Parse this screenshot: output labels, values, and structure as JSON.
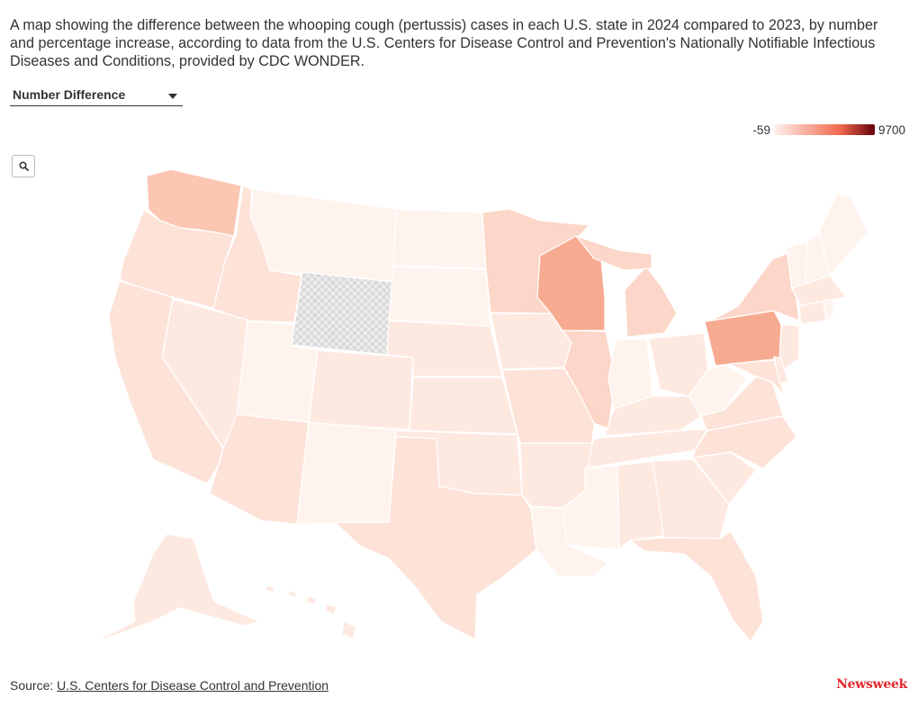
{
  "description": "A map showing the difference between the whooping cough (pertussis) cases in each U.S. state in 2024 compared to 2023, by number and percentage increase, according to data from the U.S. Centers for Disease Control and Prevention's Nationally Notifiable Infectious Diseases and Conditions, provided by CDC WONDER.",
  "dropdown": {
    "selected": "Number Difference"
  },
  "legend": {
    "min_label": "-59",
    "max_label": "9700",
    "color_low": "#fff1ec",
    "color_mid": "#f26a4f",
    "color_high": "#67000d"
  },
  "colors": {
    "no_data": "#e6e6e6",
    "shade_1": "#fff3ee",
    "shade_2": "#fee9e1",
    "shade_3": "#fde2d7",
    "shade_4": "#fcd6c8",
    "shade_5": "#fbc6b2",
    "shade_6": "#f6ab90"
  },
  "zoom_button": {
    "icon": "search-icon"
  },
  "source": {
    "prefix": "Source: ",
    "link_text": "U.S. Centers for Disease Control and Prevention"
  },
  "logo": "Newsweek"
}
